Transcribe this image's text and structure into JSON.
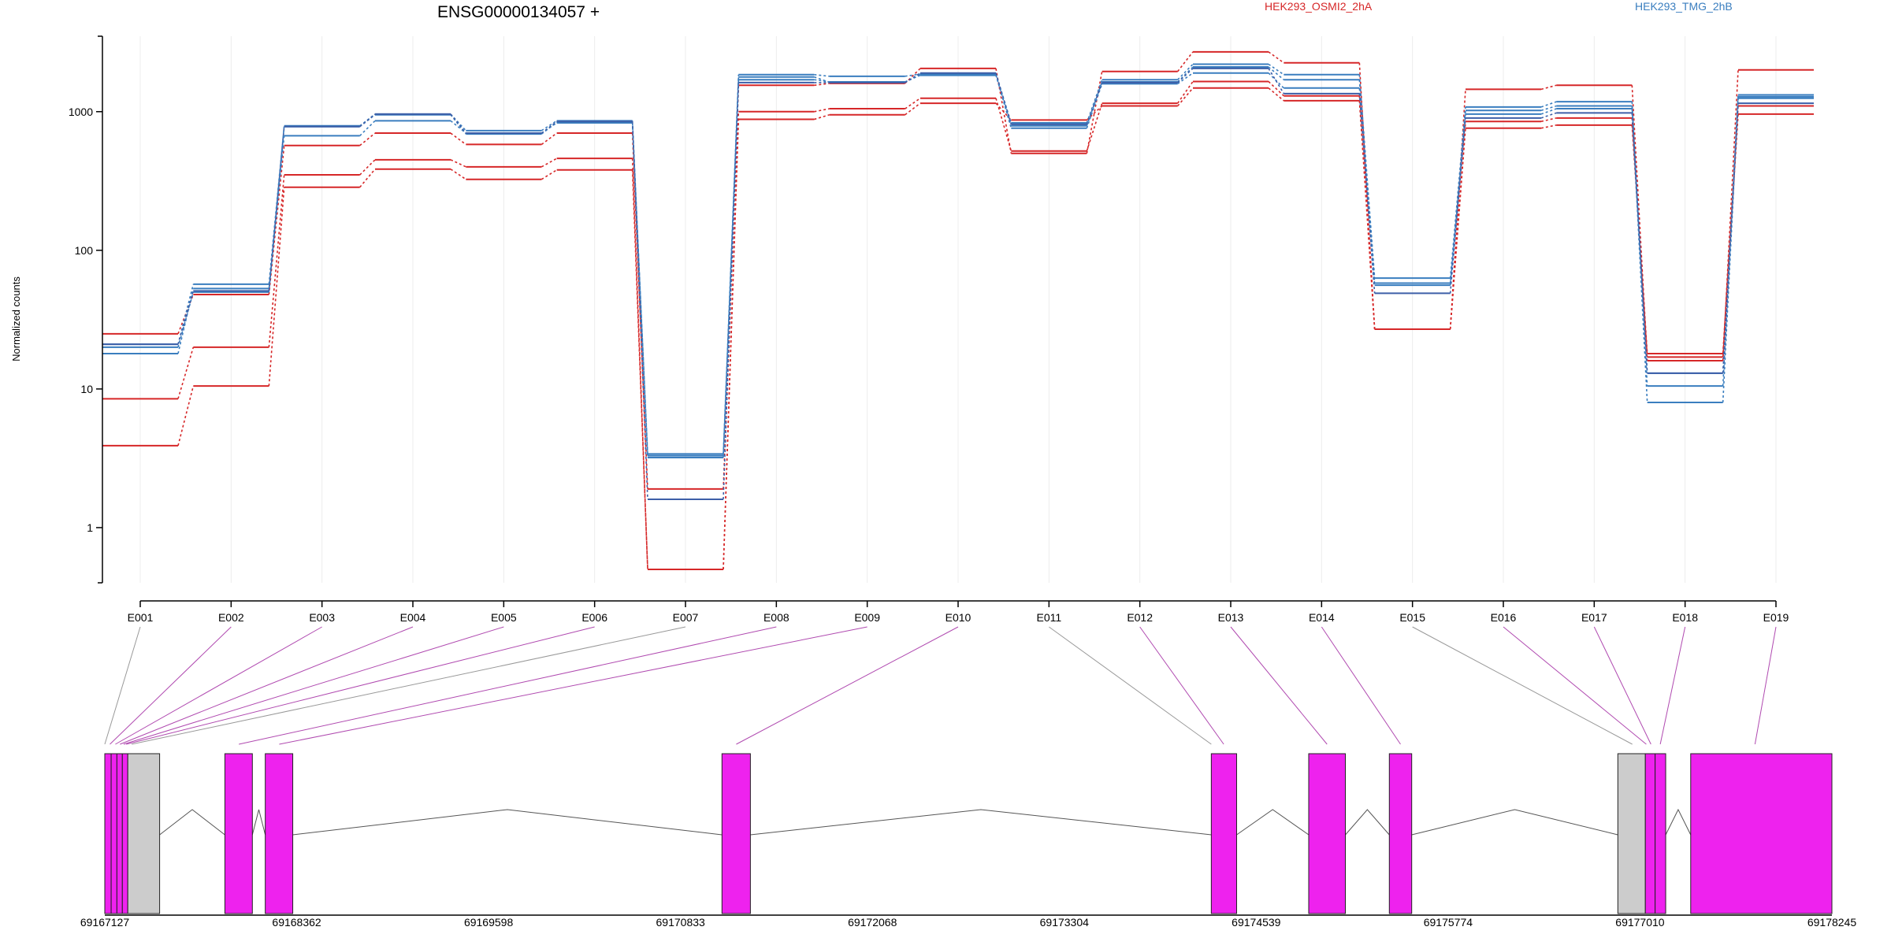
{
  "chart_data": {
    "type": "line",
    "title": "ENSG00000134057 +",
    "ylabel": "Normalized counts",
    "yscale": "log",
    "ylim": [
      0.4,
      3500
    ],
    "yticks": [
      1,
      10,
      100,
      1000
    ],
    "ytick_labels": [
      "1",
      "10",
      "100",
      "1000"
    ],
    "grid": "vertical",
    "legend_placement": "top-right",
    "categories": [
      "E001",
      "E002",
      "E003",
      "E004",
      "E005",
      "E006",
      "E007",
      "E008",
      "E009",
      "E010",
      "E011",
      "E012",
      "E013",
      "E014",
      "E015",
      "E016",
      "E017",
      "E018",
      "E019"
    ],
    "conditions": [
      {
        "label": "HEK293_OSMI2_2hA",
        "color": "#d62728"
      },
      {
        "label": "HEK293_TMG_2hB",
        "color": "#3a7ebf"
      }
    ],
    "series": [
      {
        "group": 0,
        "color": "#d62728",
        "values": [
          25,
          48,
          570,
          700,
          580,
          700,
          1.9,
          1550,
          1600,
          2050,
          500,
          1950,
          2700,
          2250,
          27,
          1450,
          1550,
          16,
          2000
        ]
      },
      {
        "group": 0,
        "color": "#d62728",
        "values": [
          8.5,
          20,
          350,
          450,
          400,
          460,
          0.5,
          1000,
          1050,
          1250,
          520,
          1150,
          1650,
          1300,
          27,
          850,
          900,
          18,
          1100
        ]
      },
      {
        "group": 0,
        "color": "#d62728",
        "values": [
          3.9,
          10.5,
          285,
          385,
          325,
          380,
          0.5,
          880,
          950,
          1150,
          870,
          1100,
          1480,
          1200,
          27,
          760,
          800,
          17,
          960
        ]
      },
      {
        "group": 1,
        "color": "#3a7ebf",
        "values": [
          21,
          57,
          790,
          960,
          730,
          860,
          3.4,
          1850,
          1800,
          1870,
          830,
          1700,
          2200,
          1850,
          63,
          1080,
          1180,
          10.5,
          1320
        ]
      },
      {
        "group": 1,
        "color": "#3a7ebf",
        "values": [
          18,
          53,
          670,
          860,
          700,
          830,
          3.3,
          1700,
          1640,
          1830,
          790,
          1640,
          2100,
          1700,
          58,
          1020,
          1100,
          8,
          1250
        ]
      },
      {
        "group": 1,
        "color": "#3a7ebf",
        "values": [
          20,
          50,
          780,
          950,
          690,
          840,
          3.2,
          1780,
          1630,
          1850,
          760,
          1590,
          1900,
          1480,
          56,
          960,
          1050,
          13,
          1280
        ]
      },
      {
        "group": 1,
        "color": "#3d5fa8",
        "values": [
          21,
          51,
          780,
          960,
          700,
          850,
          1.6,
          1620,
          1620,
          1900,
          810,
          1620,
          2050,
          1350,
          49,
          900,
          980,
          13,
          1150
        ]
      }
    ],
    "gene_model": {
      "coord_ticks": [
        "69167127",
        "69168362",
        "69169598",
        "69170833",
        "69172068",
        "69173304",
        "69174539",
        "69175774",
        "69177010",
        "69178245"
      ],
      "coord_range": [
        69167127,
        69178245
      ],
      "exon_color": "#ee22ee",
      "other_color": "#cccccc",
      "exons": [
        {
          "start": 69167127,
          "end": 69167168,
          "fill": "magenta"
        },
        {
          "start": 69167168,
          "end": 69167205,
          "fill": "magenta"
        },
        {
          "start": 69167205,
          "end": 69167240,
          "fill": "magenta"
        },
        {
          "start": 69167240,
          "end": 69167275,
          "fill": "magenta"
        },
        {
          "start": 69167275,
          "end": 69167480,
          "fill": "gray"
        },
        {
          "start": 69167900,
          "end": 69168077,
          "fill": "magenta"
        },
        {
          "start": 69168160,
          "end": 69168337,
          "fill": "magenta"
        },
        {
          "start": 69171100,
          "end": 69171283,
          "fill": "magenta"
        },
        {
          "start": 69174250,
          "end": 69174413,
          "fill": "magenta"
        },
        {
          "start": 69174877,
          "end": 69175113,
          "fill": "magenta"
        },
        {
          "start": 69175396,
          "end": 69175540,
          "fill": "magenta"
        },
        {
          "start": 69176867,
          "end": 69177044,
          "fill": "gray"
        },
        {
          "start": 69177044,
          "end": 69177107,
          "fill": "magenta"
        },
        {
          "start": 69177107,
          "end": 69177175,
          "fill": "magenta"
        },
        {
          "start": 69177336,
          "end": 69178245,
          "fill": "magenta"
        }
      ],
      "mapping": [
        {
          "exon": "E001",
          "coord": 69167127,
          "color": "gray"
        },
        {
          "exon": "E002",
          "coord": 69167160,
          "color": "magenta"
        },
        {
          "exon": "E003",
          "coord": 69167195,
          "color": "magenta"
        },
        {
          "exon": "E004",
          "coord": 69167225,
          "color": "magenta"
        },
        {
          "exon": "E005",
          "coord": 69167248,
          "color": "magenta"
        },
        {
          "exon": "E006",
          "coord": 69167265,
          "color": "magenta"
        },
        {
          "exon": "E007",
          "coord": 69167300,
          "color": "gray"
        },
        {
          "exon": "E008",
          "coord": 69167990,
          "color": "magenta"
        },
        {
          "exon": "E009",
          "coord": 69168250,
          "color": "magenta"
        },
        {
          "exon": "E010",
          "coord": 69171192,
          "color": "magenta"
        },
        {
          "exon": "E011",
          "coord": 69174250,
          "color": "gray"
        },
        {
          "exon": "E012",
          "coord": 69174330,
          "color": "magenta"
        },
        {
          "exon": "E013",
          "coord": 69174995,
          "color": "magenta"
        },
        {
          "exon": "E014",
          "coord": 69175468,
          "color": "magenta"
        },
        {
          "exon": "E015",
          "coord": 69176960,
          "color": "gray"
        },
        {
          "exon": "E016",
          "coord": 69177050,
          "color": "magenta"
        },
        {
          "exon": "E017",
          "coord": 69177080,
          "color": "magenta"
        },
        {
          "exon": "E018",
          "coord": 69177140,
          "color": "magenta"
        },
        {
          "exon": "E019",
          "coord": 69177750,
          "color": "magenta"
        }
      ]
    }
  }
}
